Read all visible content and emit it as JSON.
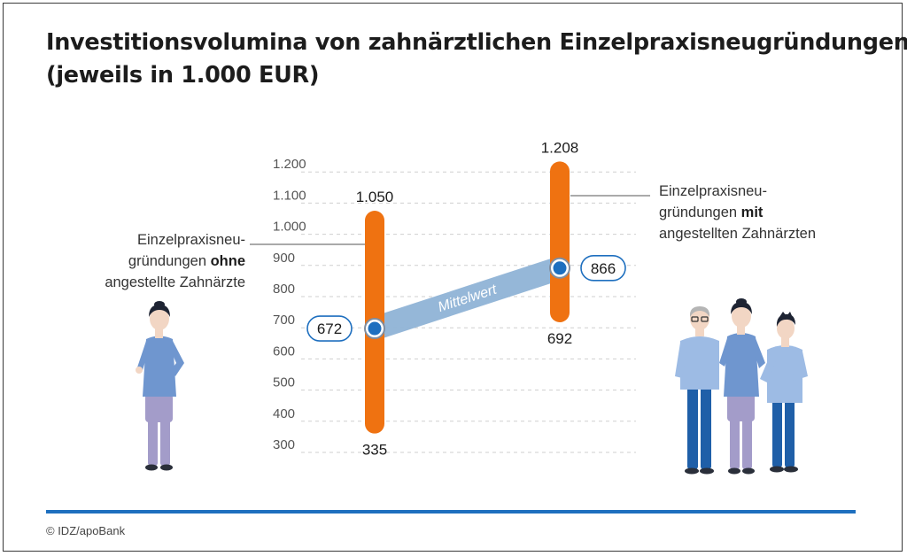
{
  "title_lines": [
    "Investitionsvolumina von zahnärztlichen Einzelpraxisneugründungen",
    "(jeweils in 1.000 EUR)"
  ],
  "copyright": "© IDZ/apoBank",
  "colors": {
    "bar": "#ef7211",
    "mean_band": "#8fb3d6",
    "dot": "#1e6fbf",
    "accent": "#1e6fbf",
    "grid": "#cfcfcf"
  },
  "chart_data": {
    "type": "range-bar",
    "title": "Investitionsvolumina von zahnärztlichen Einzelpraxisneugründungen (jeweils in 1.000 EUR)",
    "yticks": [
      "300",
      "400",
      "500",
      "600",
      "700",
      "800",
      "900",
      "1.000",
      "1.100",
      "1.200"
    ],
    "ylim": [
      300,
      1200
    ],
    "grid": true,
    "series": [
      {
        "label_lines": [
          "Einzelpraxisneu-",
          "gründungen ",
          "angestellte Zahnärzte"
        ],
        "label_bold": "ohne",
        "min": 335,
        "max": 1050,
        "mean": 672,
        "min_label": "335",
        "max_label": "1.050",
        "mean_label": "672"
      },
      {
        "label_lines": [
          "Einzelpraxisneu-",
          "gründungen ",
          "angestellten Zahnärzten"
        ],
        "label_bold": "mit",
        "min": 692,
        "max": 1208,
        "mean": 866,
        "min_label": "692",
        "max_label": "1.208",
        "mean_label": "866"
      }
    ],
    "mean_band_label": "Mittelwert",
    "illustrations": [
      "dentist-illustration",
      "dental-team-illustration"
    ]
  }
}
